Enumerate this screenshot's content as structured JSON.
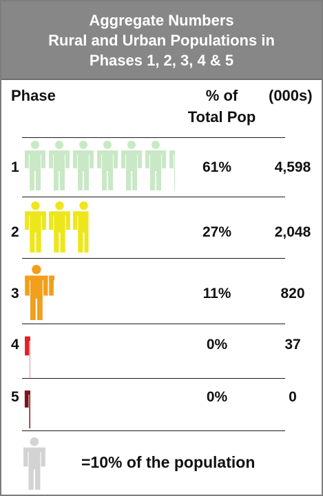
{
  "header": {
    "title_line1": "Aggregate Numbers",
    "title_line2": "Rural and Urban Populations in",
    "title_line3": "Phases 1, 2, 3, 4 & 5"
  },
  "columns": {
    "phase": "Phase",
    "pct_line1": "% of",
    "pct_line2": "Total Pop",
    "count": "(000s)"
  },
  "legend": {
    "text": "=10% of the population",
    "icon_value_percent": 10,
    "icon_color": "#d3d3d3"
  },
  "chart_data": {
    "type": "table",
    "title": "Aggregate Numbers Rural and Urban Populations in Phases 1, 2, 3, 4 & 5",
    "unit_per_icon_percent": 10,
    "rows": [
      {
        "phase": "1",
        "percent": 61,
        "percent_label": "61%",
        "count_000s": 4598,
        "count_label": "4,598",
        "color": "#c9e8c6"
      },
      {
        "phase": "2",
        "percent": 27,
        "percent_label": "27%",
        "count_000s": 2048,
        "count_label": "2,048",
        "color": "#ede61c"
      },
      {
        "phase": "3",
        "percent": 11,
        "percent_label": "11%",
        "count_000s": 820,
        "count_label": "820",
        "color": "#f29f1b"
      },
      {
        "phase": "4",
        "percent": 0,
        "percent_label": "0%",
        "count_000s": 37,
        "count_label": "37",
        "color": "#df2027"
      },
      {
        "phase": "5",
        "percent": 0,
        "percent_label": "0%",
        "count_000s": 0,
        "count_label": "0",
        "color": "#7d1214"
      }
    ]
  }
}
